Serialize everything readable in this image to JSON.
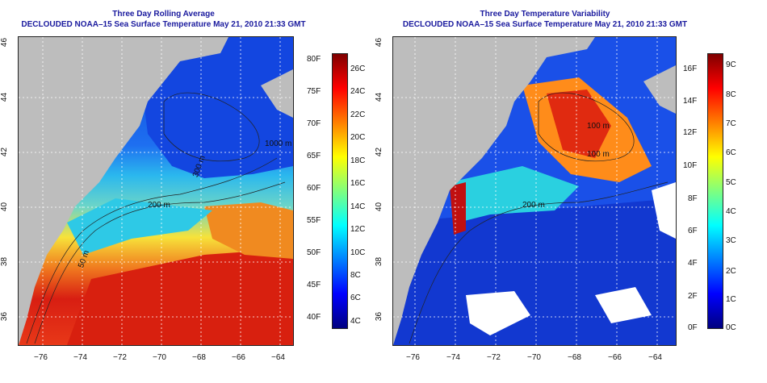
{
  "colors": {
    "title": "#1a1a9e",
    "land": "#bdbdbd",
    "cbar_stops": [
      "#00007f",
      "#0000ff",
      "#007fff",
      "#00ffff",
      "#7fff7f",
      "#ffff00",
      "#ff7f00",
      "#ff0000",
      "#7f0000"
    ]
  },
  "left": {
    "title_line1": "Three Day Rolling Average",
    "title_line2": "DECLOUDED NOAA–15 Sea Surface Temperature May 21, 2010 21:33 GMT",
    "lat_ticks": [
      "36",
      "38",
      "40",
      "42",
      "44",
      "46"
    ],
    "lon_ticks": [
      "−76",
      "−74",
      "−72",
      "−70",
      "−68",
      "−66",
      "−64"
    ],
    "isobaths": [
      "50 m",
      "200 m",
      "300 m",
      "1000 m"
    ],
    "cbar_f": [
      "40F",
      "45F",
      "50F",
      "55F",
      "60F",
      "65F",
      "70F",
      "75F",
      "80F"
    ],
    "cbar_c": [
      "4C",
      "6C",
      "8C",
      "10C",
      "12C",
      "14C",
      "16C",
      "18C",
      "20C",
      "22C",
      "24C",
      "26C"
    ]
  },
  "right": {
    "title_line1": "Three Day Temperature Variability",
    "title_line2": "DECLOUDED NOAA–15 Sea Surface Temperature May 21, 2010 21:33 GMT",
    "lat_ticks": [
      "36",
      "38",
      "40",
      "42",
      "44",
      "46"
    ],
    "lon_ticks": [
      "−76",
      "−74",
      "−72",
      "−70",
      "−68",
      "−66",
      "−64"
    ],
    "isobaths": [
      "100 m",
      "100 m",
      "200 m"
    ],
    "cbar_f": [
      "0F",
      "2F",
      "4F",
      "6F",
      "8F",
      "10F",
      "12F",
      "14F",
      "16F"
    ],
    "cbar_c": [
      "0C",
      "1C",
      "2C",
      "3C",
      "4C",
      "5C",
      "6C",
      "7C",
      "8C",
      "9C"
    ]
  }
}
